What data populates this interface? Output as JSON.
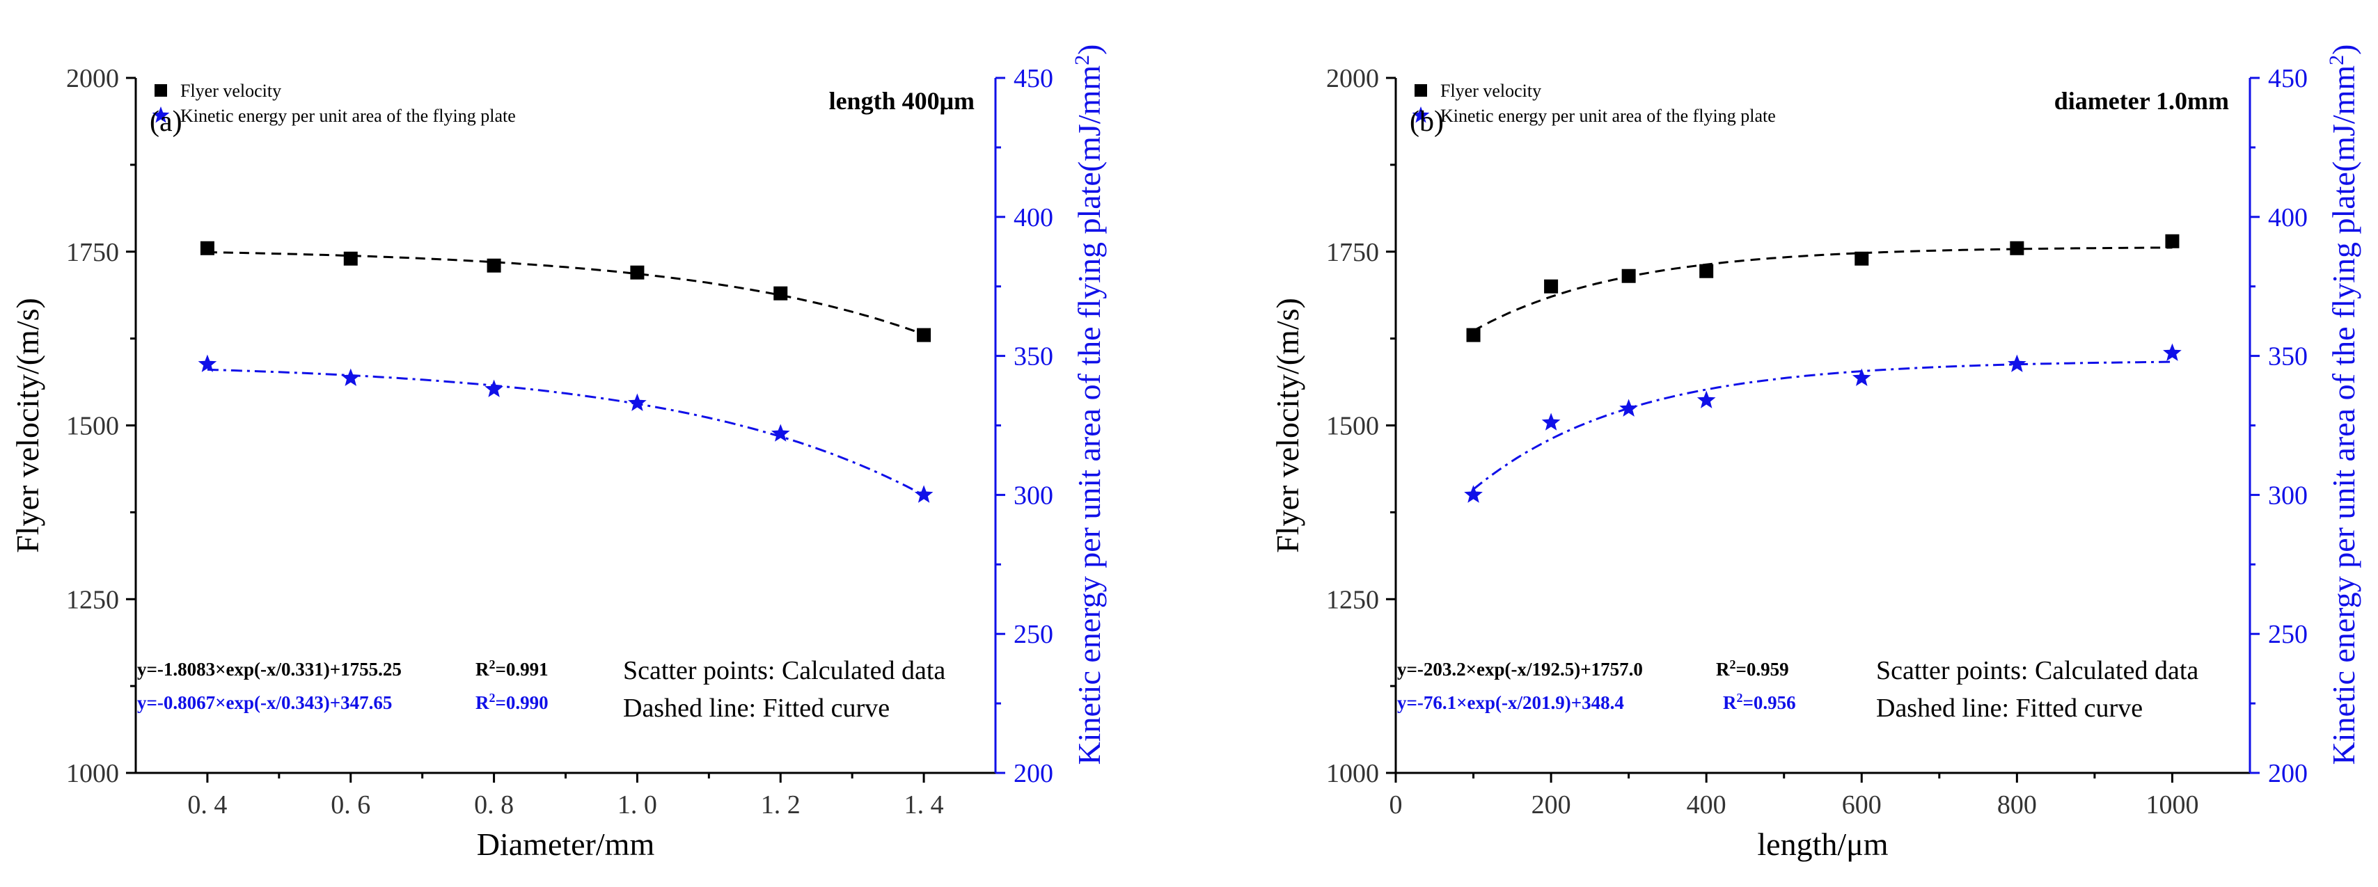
{
  "chart_data": [
    {
      "type": "scatter",
      "panel_label": "(a)",
      "parameter_text": "length 400μm",
      "xlabel": "Diameter/mm",
      "ylabel": "Flyer velocity/(m/s)",
      "y2label": "Kinetic energy per unit area of the flying plate(mJ/mm",
      "y2label_sup": "2",
      "y2label_end": ")",
      "xlim": [
        0.3,
        1.5
      ],
      "ylim": [
        1000,
        2000
      ],
      "y2lim": [
        200,
        450
      ],
      "x_ticks": [
        0.4,
        0.6,
        0.8,
        1.0,
        1.2,
        1.4
      ],
      "x_tick_labels": [
        "0. 4",
        "0. 6",
        "0. 8",
        "1. 0",
        "1. 2",
        "1. 4"
      ],
      "y_ticks": [
        1000,
        1250,
        1500,
        1750,
        2000
      ],
      "y_tick_labels": [
        "1000",
        "1250",
        "1500",
        "1750",
        "2000"
      ],
      "y2_ticks": [
        200,
        250,
        300,
        350,
        400,
        450
      ],
      "y2_tick_labels": [
        "200",
        "250",
        "300",
        "350",
        "400",
        "450"
      ],
      "series": [
        {
          "name": "Flyer velocity",
          "axis": "left",
          "marker": "square",
          "color": "#000000",
          "x": [
            0.4,
            0.6,
            0.8,
            1.0,
            1.2,
            1.4
          ],
          "values": [
            1755,
            1740,
            1730,
            1720,
            1690,
            1630
          ],
          "fit": {
            "form": "exp",
            "A": -1.8083,
            "t": 0.331,
            "y0": 1755.25,
            "dash": "dash"
          }
        },
        {
          "name": "Kinetic energy per unit area of the flying plate",
          "axis": "right",
          "marker": "star",
          "color": "#1010e8",
          "x": [
            0.4,
            0.6,
            0.8,
            1.0,
            1.2,
            1.4
          ],
          "values": [
            347,
            342,
            338,
            333,
            322,
            300
          ],
          "fit": {
            "form": "exp",
            "A": -0.8067,
            "t": 0.343,
            "y0": 347.65,
            "dash": "dashdot"
          }
        }
      ],
      "legend": [
        "Flyer velocity",
        "Kinetic energy per unit area of the flying plate"
      ],
      "equations": [
        {
          "eq": "y=-1.8083×exp(-x/0.331)+1755.25",
          "r2_label": "R",
          "r2_sup": "2",
          "r2_value": "=0.991",
          "color": "#000000"
        },
        {
          "eq": "y=-0.8067×exp(-x/0.343)+347.65",
          "r2_label": "R",
          "r2_sup": "2",
          "r2_value": "=0.990",
          "color": "#1010e8"
        }
      ],
      "notes": [
        "Scatter points: Calculated data",
        "Dashed line: Fitted curve"
      ]
    },
    {
      "type": "scatter",
      "panel_label": "(b)",
      "parameter_text": "diameter 1.0mm",
      "xlabel": "length/μm",
      "ylabel": "Flyer velocity/(m/s)",
      "y2label": "Kinetic energy per unit area of the flying plate(mJ/mm",
      "y2label_sup": "2",
      "y2label_end": ")",
      "xlim": [
        0,
        1100
      ],
      "ylim": [
        1000,
        2000
      ],
      "y2lim": [
        200,
        450
      ],
      "x_ticks": [
        0,
        200,
        400,
        600,
        800,
        1000
      ],
      "x_tick_labels": [
        "0",
        "200",
        "400",
        "600",
        "800",
        "1000"
      ],
      "y_ticks": [
        1000,
        1250,
        1500,
        1750,
        2000
      ],
      "y_tick_labels": [
        "1000",
        "1250",
        "1500",
        "1750",
        "2000"
      ],
      "y2_ticks": [
        200,
        250,
        300,
        350,
        400,
        450
      ],
      "y2_tick_labels": [
        "200",
        "250",
        "300",
        "350",
        "400",
        "450"
      ],
      "series": [
        {
          "name": "Flyer velocity",
          "axis": "left",
          "marker": "square",
          "color": "#000000",
          "x": [
            100,
            200,
            300,
            400,
            600,
            800,
            1000
          ],
          "values": [
            1630,
            1700,
            1715,
            1722,
            1740,
            1755,
            1765
          ],
          "fit": {
            "form": "exp",
            "A": -203.2,
            "t": 192.5,
            "y0": 1757.0,
            "dash": "dash"
          }
        },
        {
          "name": "Kinetic energy per unit area of the flying plate",
          "axis": "right",
          "marker": "star",
          "color": "#1010e8",
          "x": [
            100,
            200,
            300,
            400,
            600,
            800,
            1000
          ],
          "values": [
            300,
            326,
            331,
            334,
            342,
            347,
            351
          ],
          "fit": {
            "form": "exp",
            "A": -76.1,
            "t": 201.9,
            "y0": 348.4,
            "dash": "dashdot"
          }
        }
      ],
      "legend": [
        "Flyer velocity",
        "Kinetic energy per unit area of the flying plate"
      ],
      "equations": [
        {
          "eq": "y=-203.2×exp(-x/192.5)+1757.0",
          "r2_label": "R",
          "r2_sup": "2",
          "r2_value": "=0.959",
          "color": "#000000"
        },
        {
          "eq": "y=-76.1×exp(-x/201.9)+348.4",
          "r2_label": "R",
          "r2_sup": "2",
          "r2_value": "=0.956",
          "color": "#1010e8"
        }
      ],
      "notes": [
        "Scatter points: Calculated data",
        "Dashed line: Fitted curve"
      ]
    }
  ]
}
